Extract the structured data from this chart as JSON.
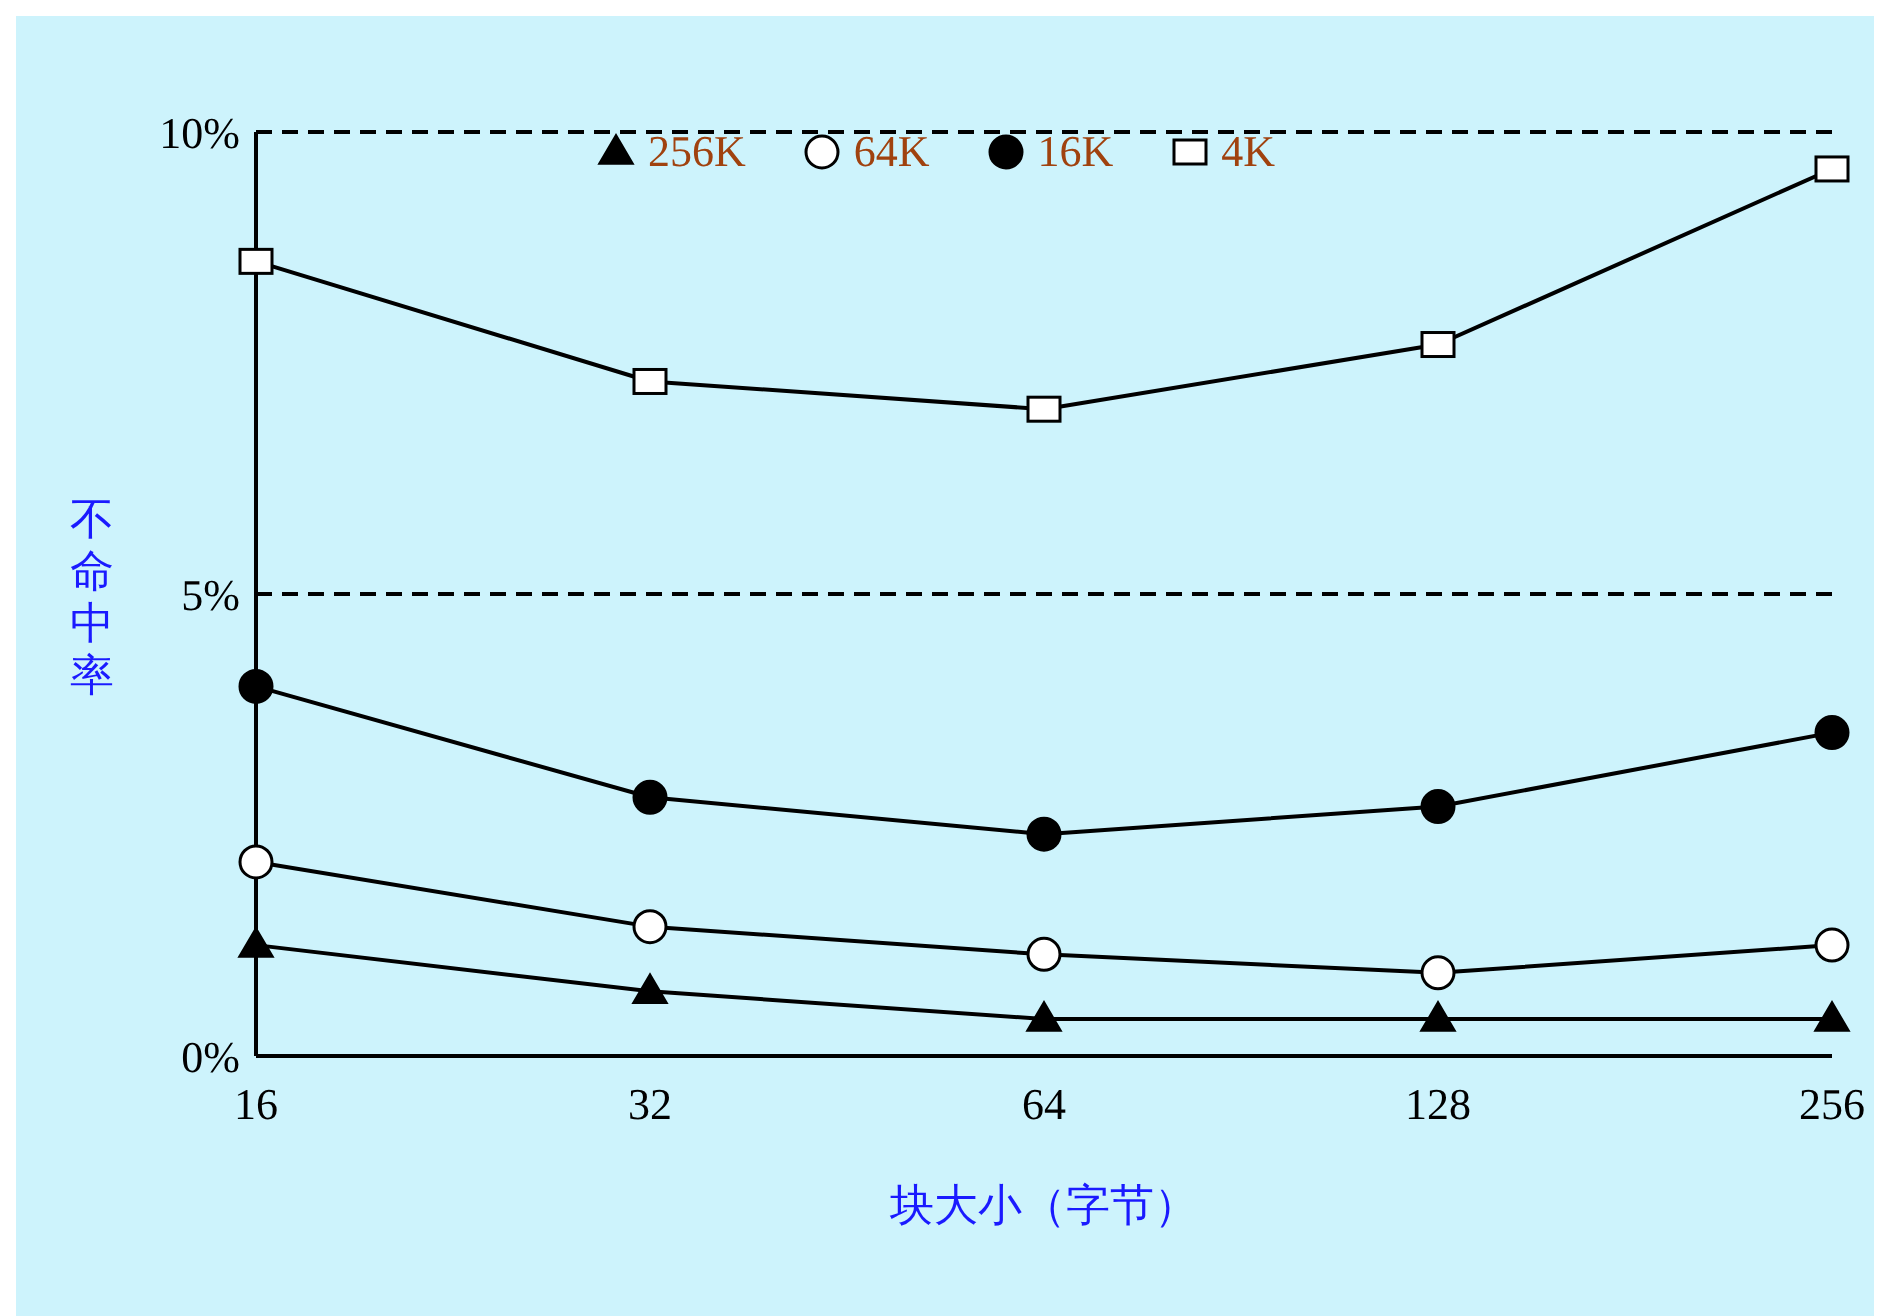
{
  "chart_data": {
    "type": "line",
    "xlabel": "块大小（字节）",
    "ylabel": "不命中率",
    "categories": [
      "16",
      "32",
      "64",
      "128",
      "256"
    ],
    "ylim": [
      0,
      10
    ],
    "yticks": [
      {
        "value": 0,
        "label": "0%"
      },
      {
        "value": 5,
        "label": "5%"
      },
      {
        "value": 10,
        "label": "10%"
      }
    ],
    "grid": "y",
    "legend": "top",
    "line_style": "solid",
    "series": [
      {
        "name": "256K",
        "color": "#000000",
        "marker": "triangle",
        "values": [
          1.2,
          0.7,
          0.4,
          0.4,
          0.4
        ]
      },
      {
        "name": "64K",
        "color": "#ffffff",
        "marker": "circle",
        "values": [
          2.1,
          1.4,
          1.1,
          0.9,
          1.2
        ]
      },
      {
        "name": "16K",
        "color": "#000000",
        "marker": "circle",
        "values": [
          4.0,
          2.8,
          2.4,
          2.7,
          3.5
        ]
      },
      {
        "name": "4K",
        "color": "#ffffff",
        "marker": "square",
        "values": [
          8.6,
          7.3,
          7.0,
          7.7,
          9.6
        ]
      }
    ]
  }
}
